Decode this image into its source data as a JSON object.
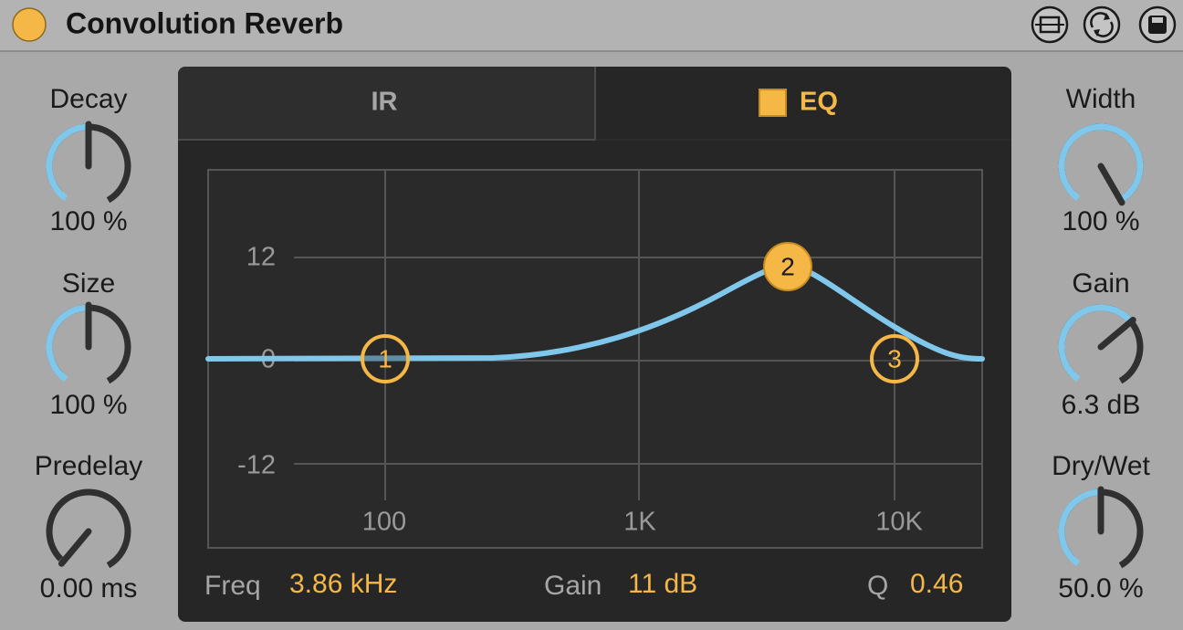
{
  "header": {
    "title": "Convolution Reverb"
  },
  "left_controls": [
    {
      "label": "Decay",
      "value": "100 %"
    },
    {
      "label": "Size",
      "value": "100 %"
    },
    {
      "label": "Predelay",
      "value": "0.00 ms"
    }
  ],
  "right_controls": [
    {
      "label": "Width",
      "value": "100 %"
    },
    {
      "label": "Gain",
      "value": "6.3 dB"
    },
    {
      "label": "Dry/Wet",
      "value": "50.0 %"
    }
  ],
  "tabs": [
    "IR",
    "EQ"
  ],
  "eq": {
    "y_labels": [
      "12",
      "0",
      "-12"
    ],
    "x_labels": [
      "100",
      "1K",
      "10K"
    ],
    "bands": [
      "1",
      "2",
      "3"
    ],
    "readouts": [
      {
        "label": "Freq",
        "value": "3.86 kHz"
      },
      {
        "label": "Gain",
        "value": "11 dB"
      },
      {
        "label": "Q",
        "value": "0.46"
      }
    ]
  }
}
